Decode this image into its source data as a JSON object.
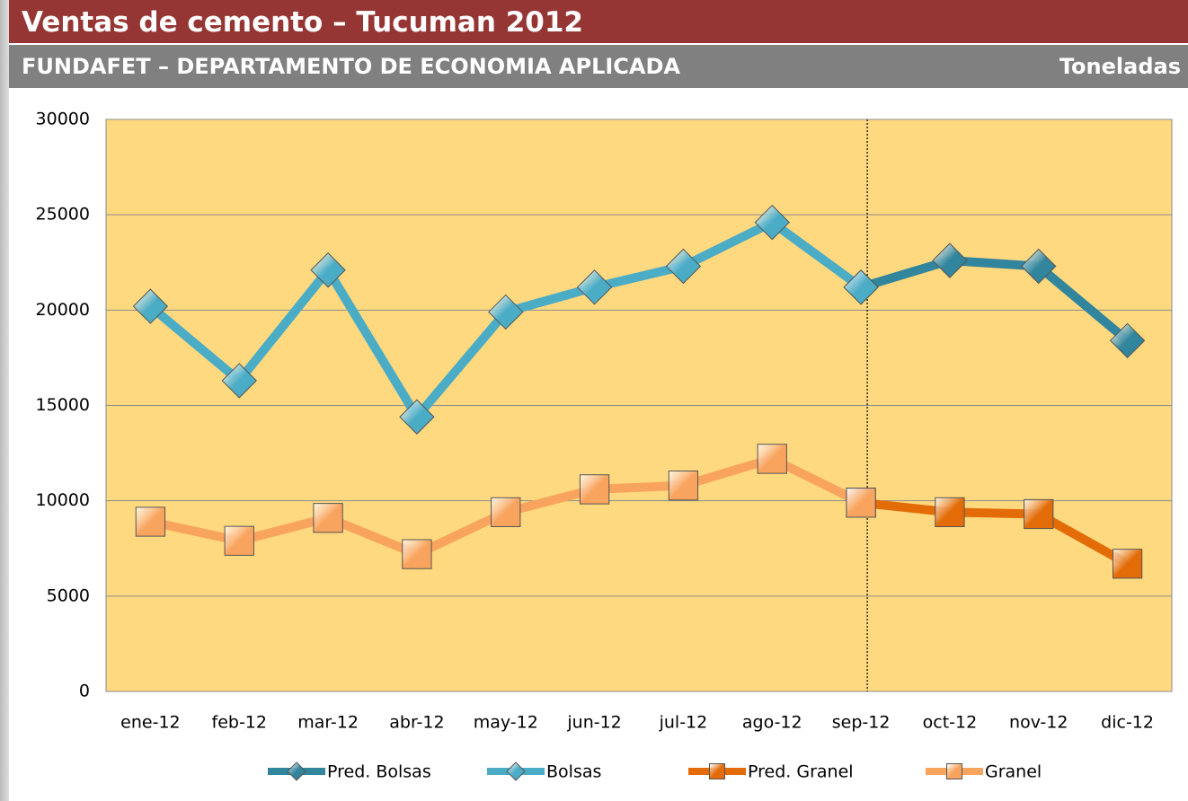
{
  "header": {
    "title": "Ventas de cemento – Tucuman 2012",
    "subtitle": "FUNDAFET – DEPARTAMENTO DE ECONOMIA APLICADA",
    "unit": "Toneladas"
  },
  "chart_data": {
    "type": "line",
    "categories": [
      "ene-12",
      "feb-12",
      "mar-12",
      "abr-12",
      "may-12",
      "jun-12",
      "jul-12",
      "ago-12",
      "sep-12",
      "oct-12",
      "nov-12",
      "dic-12"
    ],
    "series": [
      {
        "name": "Pred. Bolsas",
        "color": "#31859c",
        "marker": "diamond",
        "values": [
          null,
          null,
          null,
          null,
          null,
          null,
          null,
          null,
          21200,
          22600,
          22300,
          18400
        ]
      },
      {
        "name": "Bolsas",
        "color": "#4bacc6",
        "marker": "diamond",
        "values": [
          20200,
          16300,
          22100,
          14400,
          19900,
          21200,
          22300,
          24600,
          21200,
          null,
          null,
          null
        ]
      },
      {
        "name": "Pred. Granel",
        "color": "#e36c09",
        "marker": "square",
        "values": [
          null,
          null,
          null,
          null,
          null,
          null,
          null,
          null,
          9900,
          9400,
          9300,
          6700
        ]
      },
      {
        "name": "Granel",
        "color": "#f9a45e",
        "marker": "square",
        "values": [
          8900,
          7900,
          9100,
          7200,
          9400,
          10600,
          10800,
          12200,
          9900,
          null,
          null,
          null
        ]
      }
    ],
    "ylim": [
      0,
      30000
    ],
    "yticks": [
      0,
      5000,
      10000,
      15000,
      20000,
      25000,
      30000
    ],
    "grid": true,
    "legend": "bottom"
  }
}
